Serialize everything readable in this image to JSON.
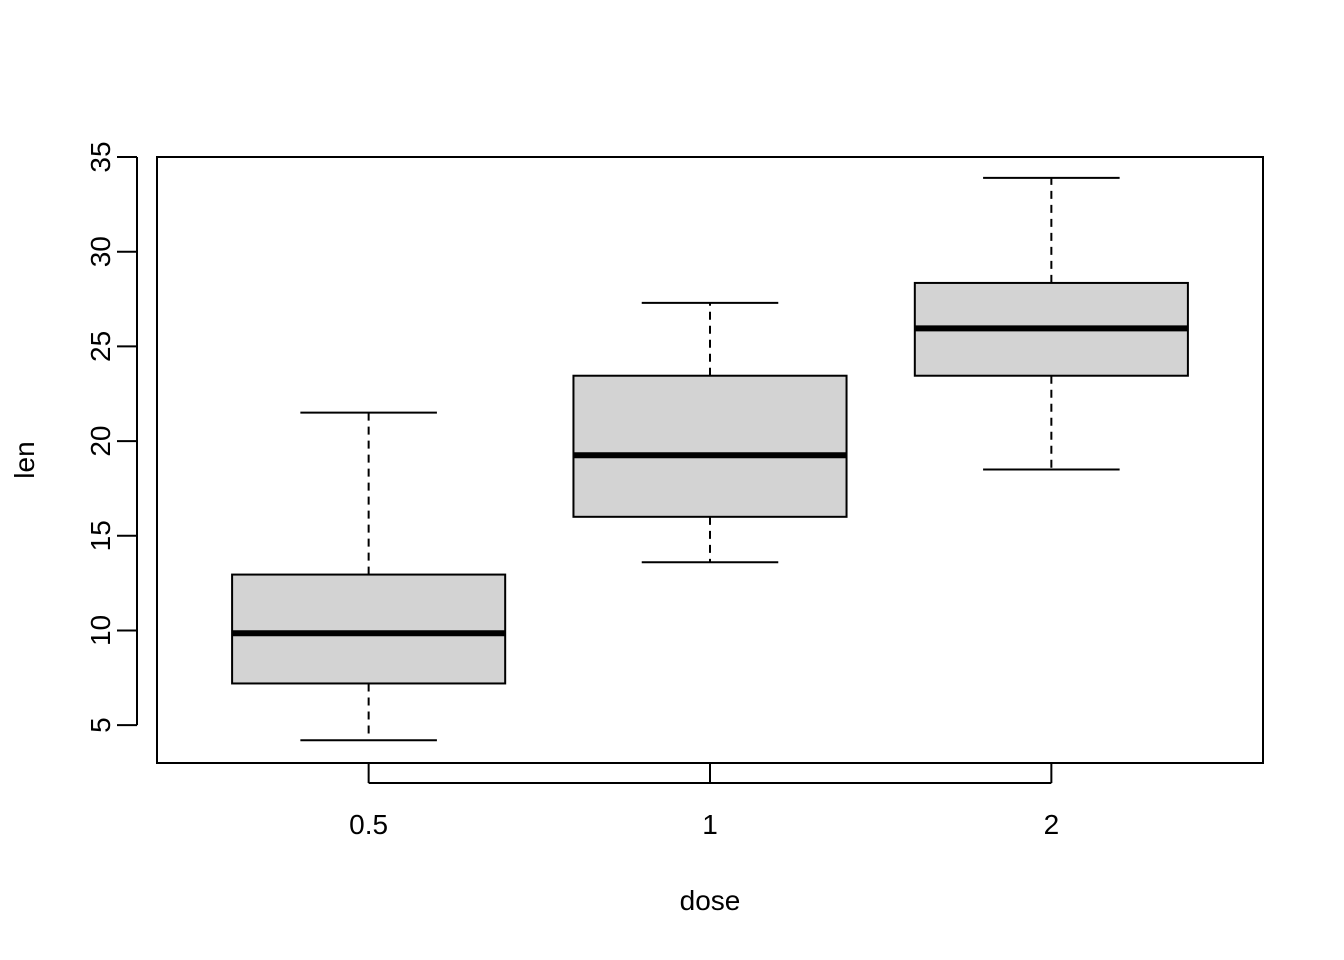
{
  "chart_data": {
    "type": "boxplot",
    "xlabel": "dose",
    "ylabel": "len",
    "ylim": [
      3,
      35
    ],
    "yticks": [
      5,
      10,
      15,
      20,
      25,
      30,
      35
    ],
    "categories": [
      "0.5",
      "1",
      "2"
    ],
    "boxes": [
      {
        "category": "0.5",
        "min": 4.2,
        "q1": 7.2,
        "median": 9.85,
        "q3": 12.95,
        "max": 21.5
      },
      {
        "category": "1",
        "min": 13.6,
        "q1": 16.0,
        "median": 19.25,
        "q3": 23.45,
        "max": 27.3
      },
      {
        "category": "2",
        "min": 18.5,
        "q1": 23.45,
        "median": 25.95,
        "q3": 28.35,
        "max": 33.9
      }
    ],
    "box_fill": "#d3d3d3",
    "line_color": "#000000",
    "grid": false
  }
}
